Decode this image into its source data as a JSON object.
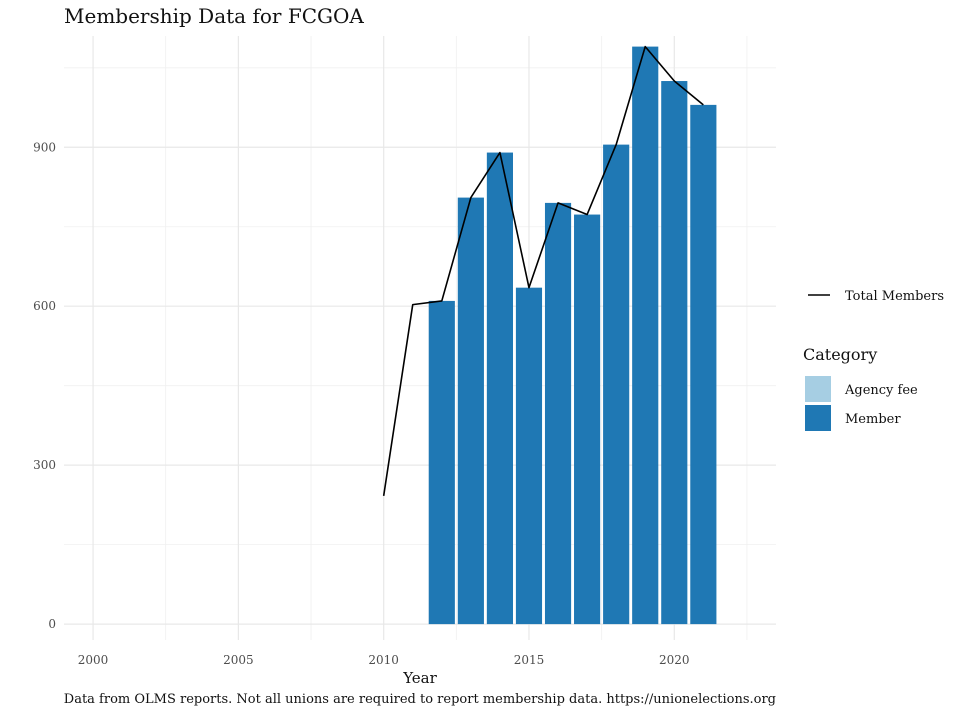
{
  "chart_data": {
    "type": "bar",
    "title": "Membership Data for FCGOA",
    "caption": "Data from OLMS reports. Not all unions are required to report membership data. https://unionelections.org",
    "xlabel": "Year",
    "ylabel": "",
    "xlim": [
      1999,
      2023.5
    ],
    "ylim": [
      -30,
      1110
    ],
    "x_ticks": [
      2000,
      2005,
      2010,
      2015,
      2020
    ],
    "y_ticks": [
      0,
      300,
      600,
      900
    ],
    "grid": true,
    "legend_position": "right",
    "legend": {
      "line_entry": "Total Members",
      "category_title": "Category",
      "category_entries": [
        {
          "name": "Agency fee",
          "color": "#a6cee3"
        },
        {
          "name": "Member",
          "color": "#1f78b4"
        }
      ]
    },
    "bars": {
      "series": "Member",
      "color": "#1f78b4",
      "x": [
        2012,
        2013,
        2014,
        2015,
        2016,
        2017,
        2018,
        2019,
        2020,
        2021
      ],
      "values": [
        610,
        805,
        890,
        635,
        795,
        773,
        905,
        1090,
        1025,
        980
      ]
    },
    "line": {
      "series": "Total Members",
      "color": "#000000",
      "x": [
        2010,
        2011,
        2012,
        2013,
        2014,
        2015,
        2016,
        2017,
        2018,
        2019,
        2020,
        2021
      ],
      "values": [
        242,
        603,
        610,
        805,
        890,
        635,
        795,
        773,
        905,
        1090,
        1025,
        980
      ]
    }
  }
}
